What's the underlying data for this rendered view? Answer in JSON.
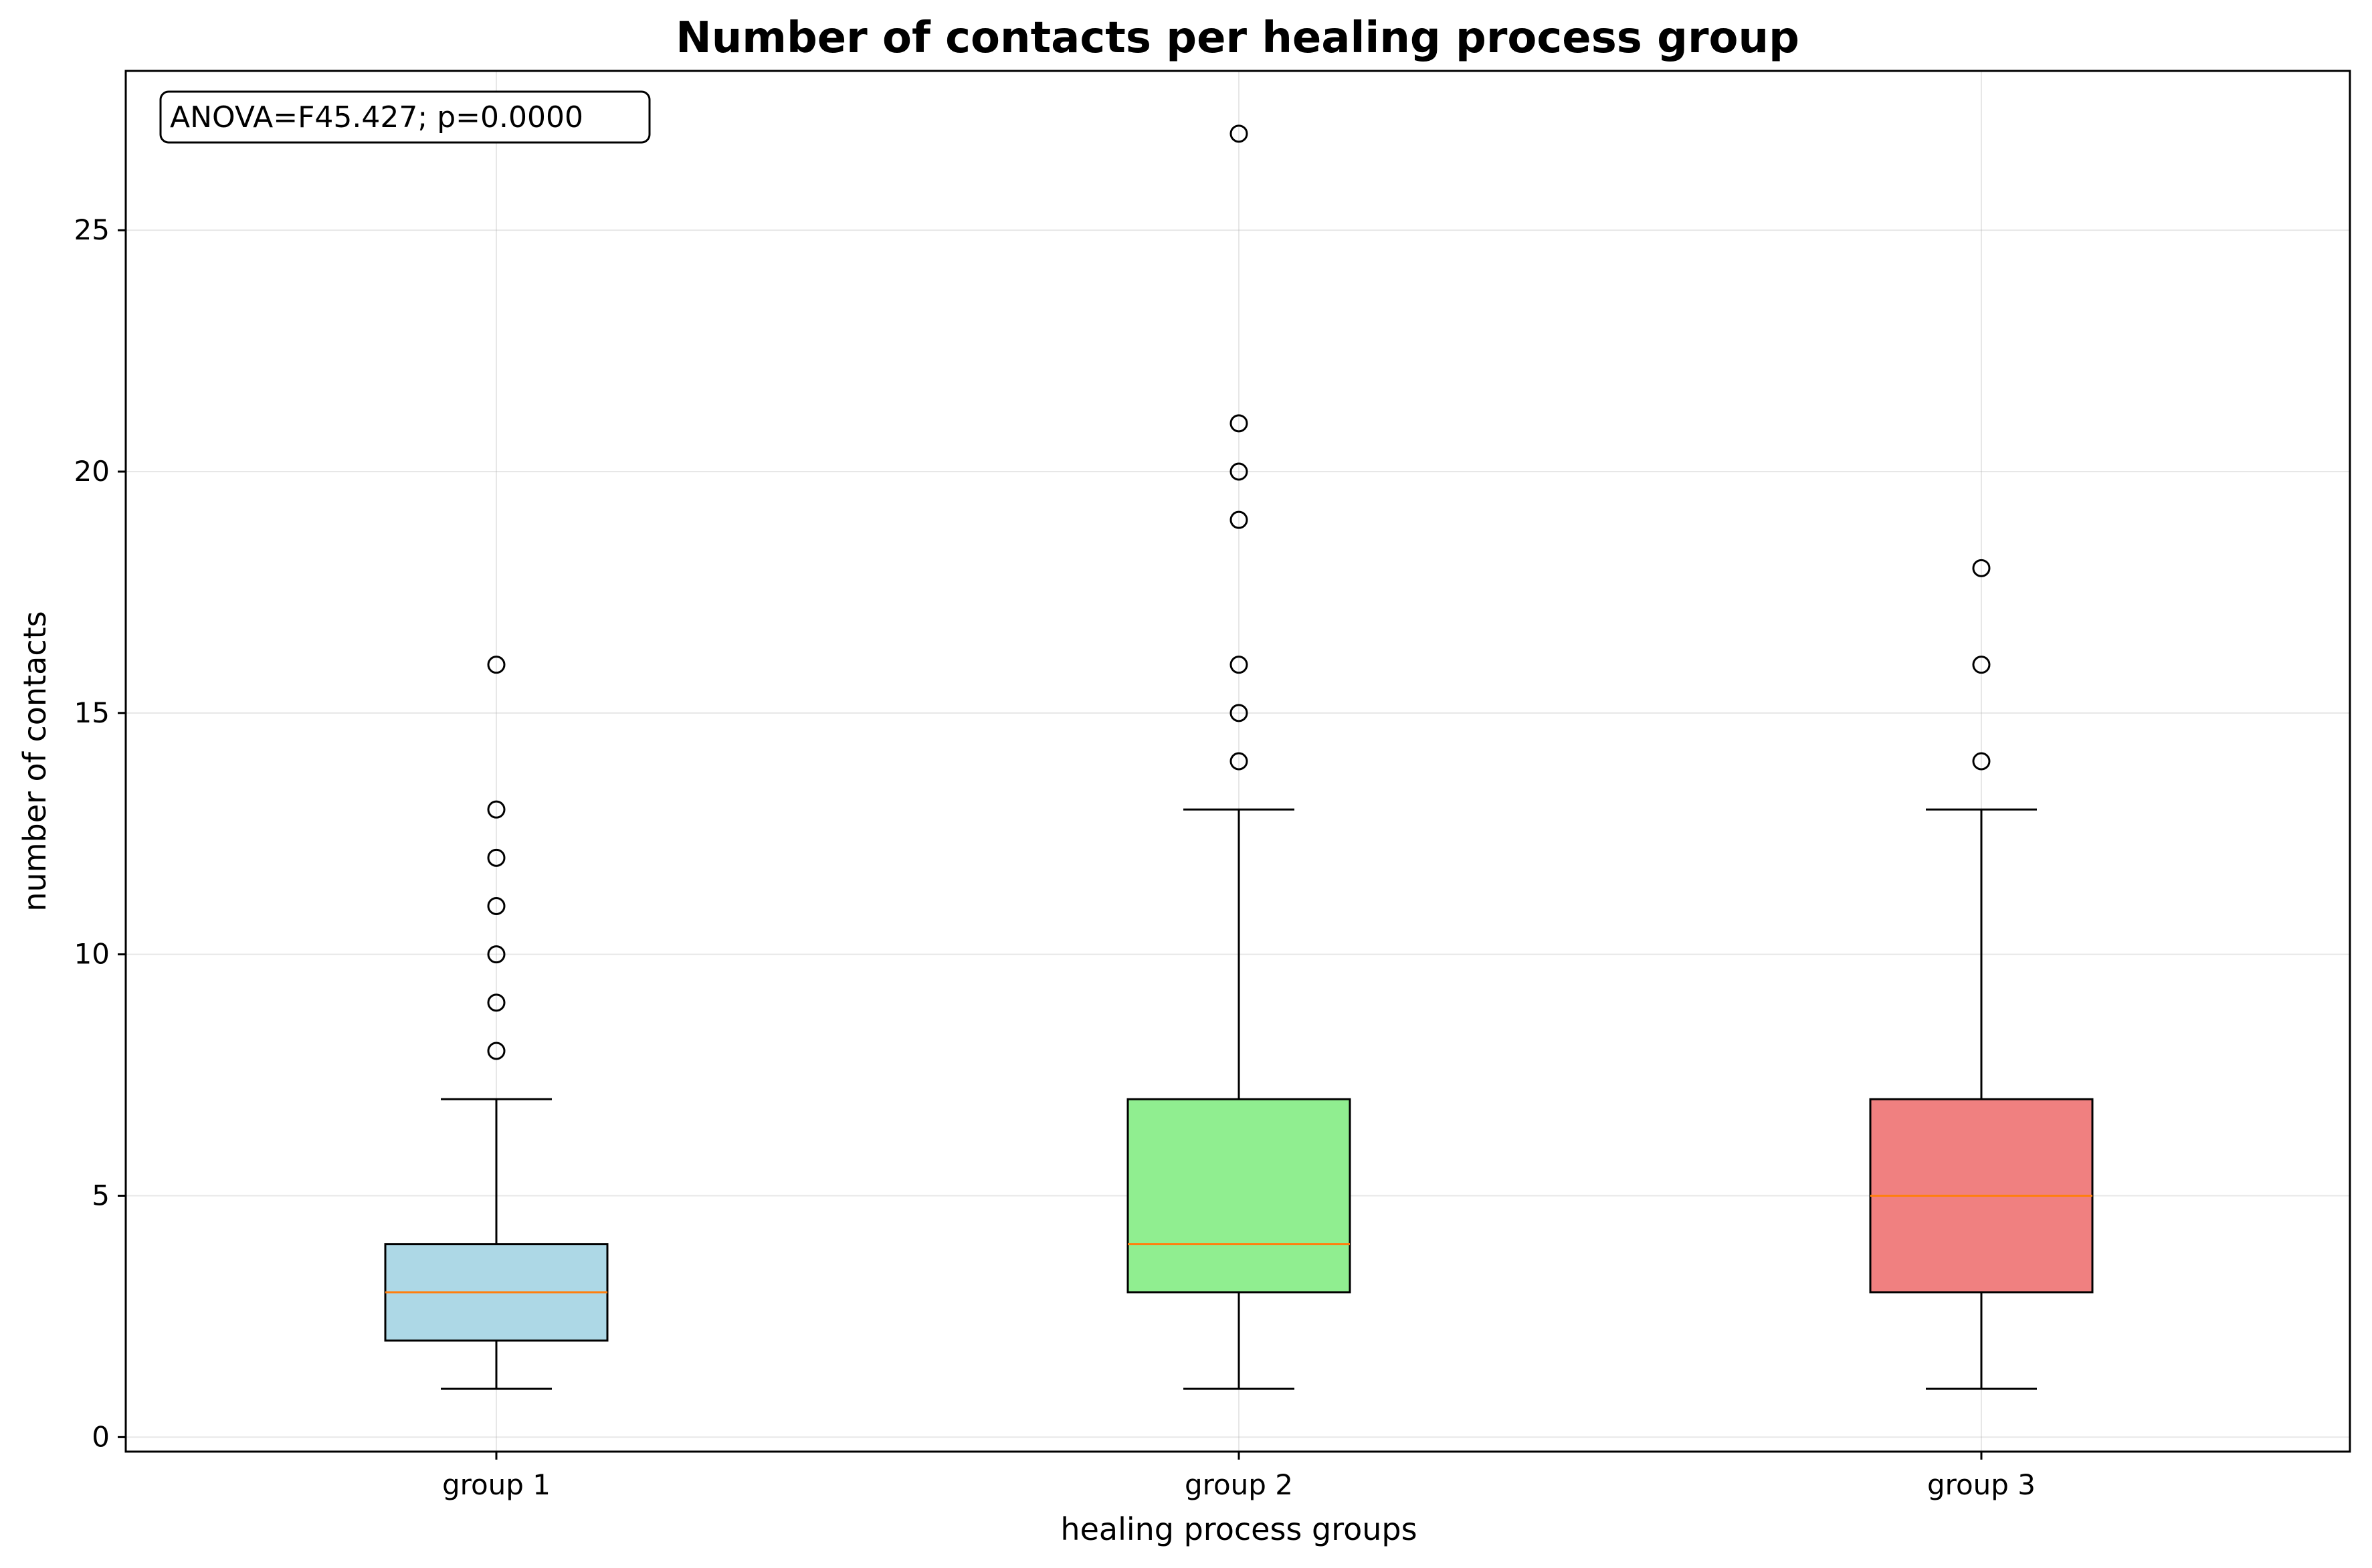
{
  "chart_data": {
    "type": "box",
    "title": "Number of contacts per healing process group",
    "xlabel": "healing process groups",
    "ylabel": "number of contacts",
    "ylim": [
      -0.3,
      28.3
    ],
    "yticks": [
      0,
      5,
      10,
      15,
      20,
      25
    ],
    "grid": true,
    "annotation": "ANOVA=F45.427; p=0.0000",
    "categories": [
      "group 1",
      "group 2",
      "group 3"
    ],
    "boxes": [
      {
        "name": "group 1",
        "whisker_low": 1,
        "q1": 2,
        "median": 3,
        "q3": 4,
        "whisker_high": 7,
        "outliers": [
          8,
          9,
          10,
          11,
          12,
          13,
          16
        ],
        "color": "#add8e6"
      },
      {
        "name": "group 2",
        "whisker_low": 1,
        "q1": 3,
        "median": 4,
        "q3": 7,
        "whisker_high": 13,
        "outliers": [
          14,
          15,
          16,
          19,
          20,
          21,
          27
        ],
        "color": "#90ee90"
      },
      {
        "name": "group 3",
        "whisker_low": 1,
        "q1": 3,
        "median": 5,
        "q3": 7,
        "whisker_high": 13,
        "outliers": [
          14,
          16,
          18
        ],
        "color": "#f08080"
      }
    ],
    "median_color": "#ff7f0e"
  }
}
